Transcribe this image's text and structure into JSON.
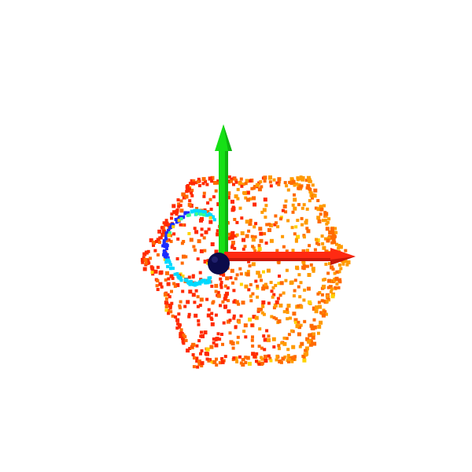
{
  "viewer": {
    "background": "#ffffff"
  },
  "point_cloud": {
    "shape": "hexagonal-prism",
    "point_count_approx": 800,
    "colormap": [
      "#ff2a00",
      "#ff6a00",
      "#ff9a00",
      "#ffd200",
      "#1e3cff",
      "#00c8ff",
      "#3cff8c"
    ],
    "inner_ring_colors": [
      "#1b2cff",
      "#00d9ff"
    ]
  },
  "axes": {
    "x": {
      "color": "#ff2a12",
      "icon": "x-axis-arrow"
    },
    "y": {
      "color": "#16e016",
      "icon": "y-axis-arrow"
    },
    "origin": {
      "color": "#0b0b4a",
      "icon": "origin-sphere"
    }
  }
}
